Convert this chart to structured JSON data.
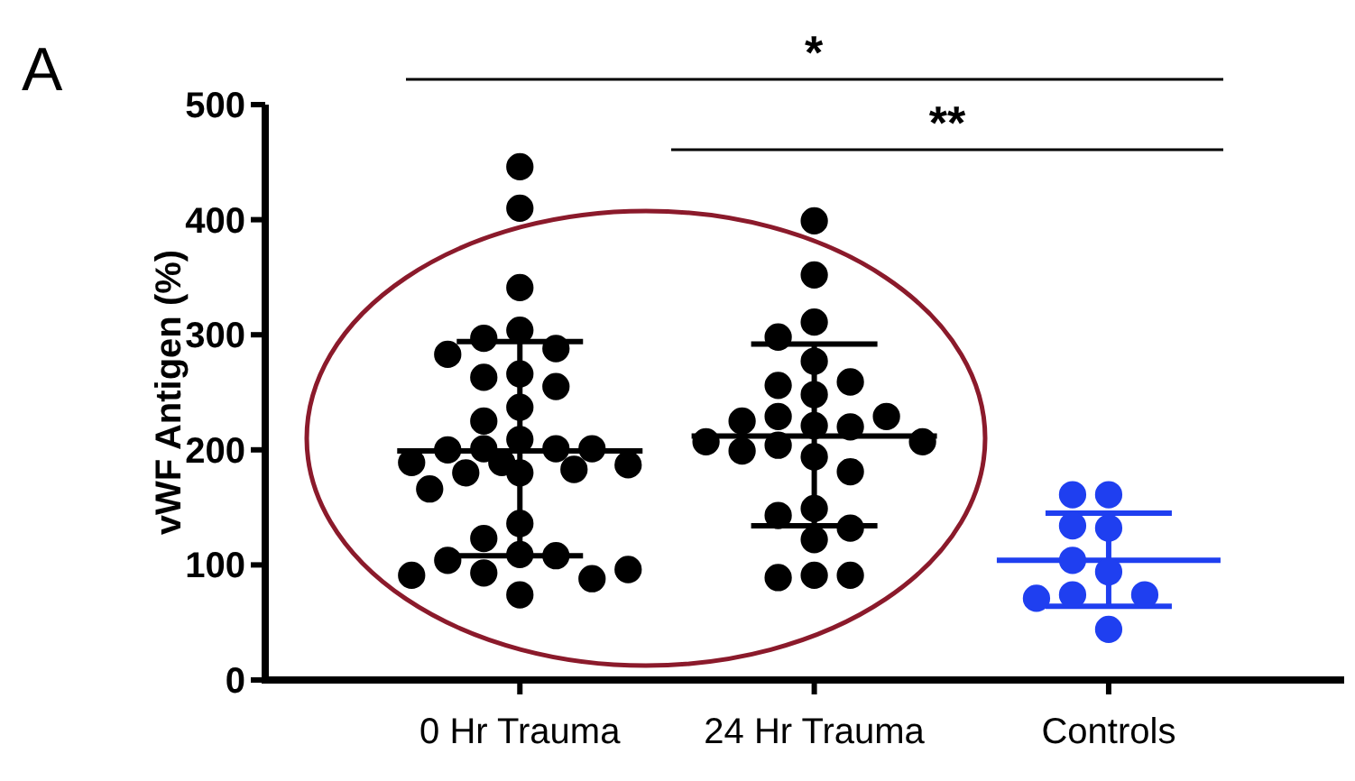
{
  "chart_data": {
    "type": "box",
    "ylabel": "vWF Antigen (%)",
    "categories": [
      "0 Hr Trauma",
      "24 Hr Trauma",
      "Controls"
    ],
    "ylim": [
      0,
      500
    ],
    "yticks": [
      0,
      100,
      200,
      300,
      400,
      500
    ],
    "grid": false,
    "colors": [
      "#000000",
      "#000000",
      "#1f3ff0"
    ],
    "boxes": [
      {
        "low": 108,
        "q1": 199,
        "median": 199,
        "q3": 199,
        "high": 294
      },
      {
        "low": 134,
        "q1": 212,
        "median": 212,
        "q3": 212,
        "high": 292
      },
      {
        "low": 64,
        "q1": 104,
        "median": 104,
        "q3": 104,
        "high": 145
      }
    ],
    "series": [
      {
        "type": "scatter",
        "marker": "circle",
        "color": "#000000",
        "x": [
          "0 Hr Trauma",
          "0 Hr Trauma",
          "0 Hr Trauma",
          "0 Hr Trauma",
          "0 Hr Trauma",
          "0 Hr Trauma",
          "0 Hr Trauma",
          "0 Hr Trauma",
          "0 Hr Trauma",
          "0 Hr Trauma",
          "0 Hr Trauma",
          "0 Hr Trauma",
          "0 Hr Trauma",
          "0 Hr Trauma",
          "0 Hr Trauma",
          "0 Hr Trauma",
          "0 Hr Trauma",
          "0 Hr Trauma",
          "0 Hr Trauma",
          "0 Hr Trauma",
          "0 Hr Trauma",
          "0 Hr Trauma",
          "0 Hr Trauma",
          "0 Hr Trauma",
          "0 Hr Trauma",
          "0 Hr Trauma",
          "0 Hr Trauma",
          "0 Hr Trauma",
          "0 Hr Trauma",
          "0 Hr Trauma",
          "0 Hr Trauma",
          "0 Hr Trauma",
          "0 Hr Trauma",
          "0 Hr Trauma"
        ],
        "values": [
          446,
          410,
          341,
          304,
          297,
          288,
          283,
          266,
          263,
          255,
          237,
          225,
          209,
          201,
          201,
          200,
          201,
          189,
          187,
          180,
          180,
          183,
          189,
          166,
          136,
          123,
          109,
          108,
          104,
          93,
          88,
          91,
          96,
          74
        ]
      },
      {
        "type": "scatter",
        "marker": "circle",
        "color": "#000000",
        "x": [
          "24 Hr Trauma",
          "24 Hr Trauma",
          "24 Hr Trauma",
          "24 Hr Trauma",
          "24 Hr Trauma",
          "24 Hr Trauma",
          "24 Hr Trauma",
          "24 Hr Trauma",
          "24 Hr Trauma",
          "24 Hr Trauma",
          "24 Hr Trauma",
          "24 Hr Trauma",
          "24 Hr Trauma",
          "24 Hr Trauma",
          "24 Hr Trauma",
          "24 Hr Trauma",
          "24 Hr Trauma",
          "24 Hr Trauma",
          "24 Hr Trauma",
          "24 Hr Trauma",
          "24 Hr Trauma",
          "24 Hr Trauma",
          "24 Hr Trauma",
          "24 Hr Trauma",
          "24 Hr Trauma",
          "24 Hr Trauma"
        ],
        "values": [
          399,
          352,
          311,
          298,
          277,
          256,
          259,
          248,
          229,
          221,
          220,
          225,
          229,
          207,
          204,
          207,
          199,
          194,
          181,
          149,
          143,
          132,
          122,
          91,
          89,
          91
        ]
      },
      {
        "type": "scatter",
        "marker": "circle",
        "color": "#1f3ff0",
        "x": [
          "Controls",
          "Controls",
          "Controls",
          "Controls",
          "Controls",
          "Controls",
          "Controls",
          "Controls",
          "Controls",
          "Controls"
        ],
        "values": [
          161,
          161,
          132,
          134,
          94,
          104,
          74,
          74,
          71,
          44
        ]
      }
    ],
    "annotations": [
      "A",
      "*",
      "**"
    ]
  }
}
